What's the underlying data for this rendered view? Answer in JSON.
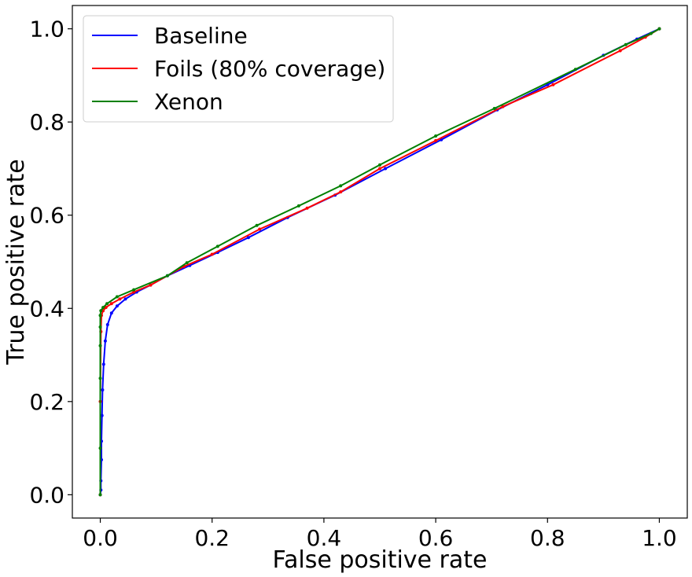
{
  "chart_data": {
    "type": "line",
    "xlabel": "False positive rate",
    "ylabel": "True positive rate",
    "xlim": [
      -0.05,
      1.05
    ],
    "ylim": [
      -0.05,
      1.05
    ],
    "xticks": [
      "0.0",
      "0.2",
      "0.4",
      "0.6",
      "0.8",
      "1.0"
    ],
    "yticks": [
      "0.0",
      "0.2",
      "0.4",
      "0.6",
      "0.8",
      "1.0"
    ],
    "grid": false,
    "legend_position": "top-left",
    "series": [
      {
        "name": "Baseline",
        "color": "#0000ff",
        "points": [
          [
            0.0,
            0.0
          ],
          [
            0.001,
            0.01
          ],
          [
            0.001,
            0.03
          ],
          [
            0.002,
            0.075
          ],
          [
            0.002,
            0.115
          ],
          [
            0.003,
            0.17
          ],
          [
            0.004,
            0.225
          ],
          [
            0.006,
            0.28
          ],
          [
            0.009,
            0.33
          ],
          [
            0.013,
            0.365
          ],
          [
            0.02,
            0.39
          ],
          [
            0.03,
            0.405
          ],
          [
            0.045,
            0.42
          ],
          [
            0.065,
            0.435
          ],
          [
            0.09,
            0.45
          ],
          [
            0.12,
            0.47
          ],
          [
            0.16,
            0.492
          ],
          [
            0.21,
            0.52
          ],
          [
            0.265,
            0.552
          ],
          [
            0.335,
            0.595
          ],
          [
            0.42,
            0.643
          ],
          [
            0.51,
            0.7
          ],
          [
            0.61,
            0.762
          ],
          [
            0.71,
            0.826
          ],
          [
            0.8,
            0.88
          ],
          [
            0.9,
            0.943
          ],
          [
            0.96,
            0.978
          ],
          [
            1.0,
            1.0
          ]
        ]
      },
      {
        "name": "Foils (80% coverage)",
        "color": "#ff0000",
        "points": [
          [
            0.0,
            0.0
          ],
          [
            0.0,
            0.2
          ],
          [
            0.001,
            0.35
          ],
          [
            0.002,
            0.385
          ],
          [
            0.005,
            0.395
          ],
          [
            0.01,
            0.402
          ],
          [
            0.02,
            0.41
          ],
          [
            0.035,
            0.42
          ],
          [
            0.06,
            0.435
          ],
          [
            0.09,
            0.45
          ],
          [
            0.15,
            0.49
          ],
          [
            0.2,
            0.516
          ],
          [
            0.285,
            0.57
          ],
          [
            0.37,
            0.615
          ],
          [
            0.43,
            0.65
          ],
          [
            0.5,
            0.7
          ],
          [
            0.6,
            0.76
          ],
          [
            0.72,
            0.833
          ],
          [
            0.81,
            0.88
          ],
          [
            0.93,
            0.953
          ],
          [
            0.975,
            0.982
          ],
          [
            1.0,
            1.0
          ]
        ]
      },
      {
        "name": "Xenon",
        "color": "#008000",
        "points": [
          [
            0.0,
            0.0
          ],
          [
            0.0,
            0.1
          ],
          [
            0.0,
            0.25
          ],
          [
            0.0,
            0.32
          ],
          [
            0.0,
            0.36
          ],
          [
            0.0,
            0.385
          ],
          [
            0.001,
            0.395
          ],
          [
            0.005,
            0.402
          ],
          [
            0.012,
            0.41
          ],
          [
            0.03,
            0.425
          ],
          [
            0.06,
            0.44
          ],
          [
            0.12,
            0.47
          ],
          [
            0.155,
            0.498
          ],
          [
            0.21,
            0.533
          ],
          [
            0.28,
            0.578
          ],
          [
            0.355,
            0.62
          ],
          [
            0.43,
            0.663
          ],
          [
            0.5,
            0.708
          ],
          [
            0.6,
            0.77
          ],
          [
            0.705,
            0.829
          ],
          [
            0.85,
            0.913
          ],
          [
            0.94,
            0.966
          ],
          [
            0.985,
            0.99
          ],
          [
            1.0,
            1.0
          ]
        ]
      }
    ]
  }
}
